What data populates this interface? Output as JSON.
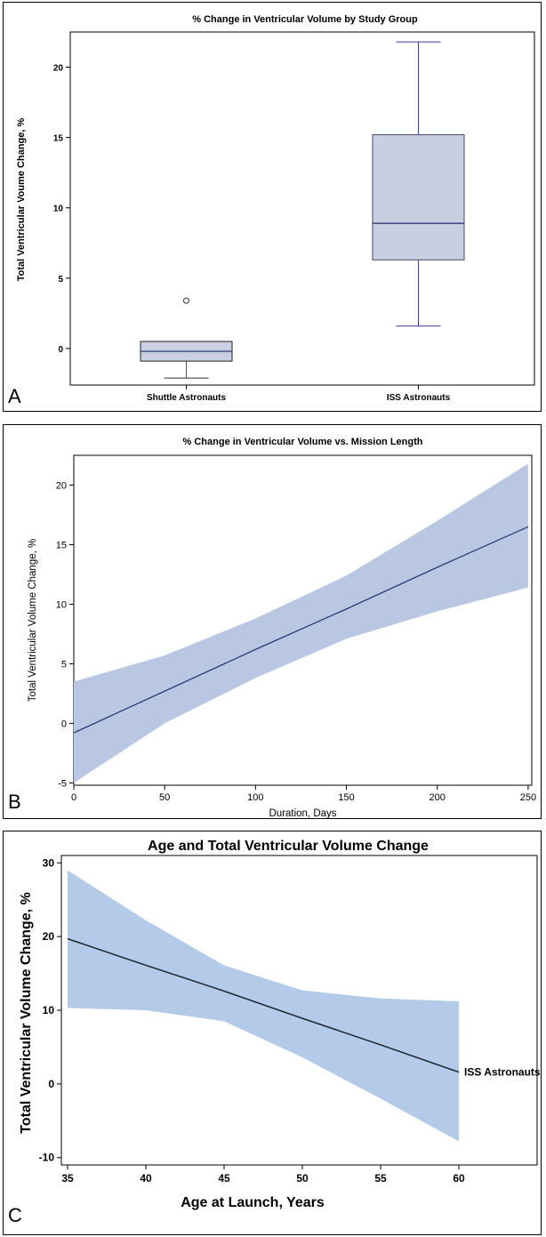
{
  "chart_data": [
    {
      "type": "box",
      "panel_label": "A",
      "title": "% Change in Ventricular Volume by Study Group",
      "xlabel": "",
      "ylabel": "Total Ventricular Voume Change, %",
      "ylim": [
        -2.6,
        22.5
      ],
      "yticks": [
        0,
        5,
        10,
        15,
        20
      ],
      "categories": [
        "Shuttle Astronauts",
        "ISS Astronauts"
      ],
      "boxes": [
        {
          "min": -2.1,
          "q1": -0.9,
          "median": -0.2,
          "q3": 0.5,
          "max": 0.5,
          "outliers": [
            3.4
          ]
        },
        {
          "min": 1.6,
          "q1": 6.3,
          "median": 8.9,
          "q3": 15.2,
          "max": 21.8,
          "outliers": []
        }
      ],
      "colors": {
        "fill": "#c9cfe0",
        "edge": "#1a2a6c",
        "whisker": "#3b3f99"
      }
    },
    {
      "type": "line",
      "panel_label": "B",
      "title": "% Change in Ventricular Volume vs. Mission Length",
      "xlabel": "Duration, Days",
      "ylabel": "Total Ventricular Volume Change, %",
      "xlim": [
        0,
        252
      ],
      "ylim": [
        -5.2,
        22.5
      ],
      "xticks": [
        0,
        50,
        100,
        150,
        200,
        250
      ],
      "yticks": [
        -5,
        0,
        5,
        10,
        15,
        20
      ],
      "x": [
        0,
        50,
        100,
        150,
        200,
        250
      ],
      "y": [
        -0.8,
        2.7,
        6.2,
        9.6,
        13.1,
        16.5
      ],
      "ci_lower": [
        -5.0,
        0.0,
        3.8,
        7.1,
        9.4,
        11.4
      ],
      "ci_upper": [
        3.5,
        5.7,
        8.8,
        12.4,
        17.0,
        21.8
      ],
      "colors": {
        "band": "#b9c7e2",
        "line": "#1f2f6e"
      }
    },
    {
      "type": "line",
      "panel_label": "C",
      "title": "Age and Total Ventricular Volume Change",
      "xlabel": "Age at Launch, Years",
      "ylabel": "Total Ventricular Volume Change, %",
      "xlim": [
        34.6,
        65
      ],
      "ylim": [
        -11,
        31
      ],
      "xticks": [
        35,
        40,
        45,
        50,
        55,
        60
      ],
      "yticks": [
        -10,
        0,
        10,
        20,
        30
      ],
      "x": [
        35,
        40,
        45,
        50,
        55,
        60
      ],
      "y": [
        19.7,
        16.1,
        12.6,
        8.9,
        5.3,
        1.6
      ],
      "ci_lower": [
        10.3,
        10.0,
        8.5,
        3.6,
        -2.0,
        -7.8
      ],
      "ci_upper": [
        29.0,
        22.2,
        16.1,
        12.7,
        11.6,
        11.2
      ],
      "series_label": "ISS Astronauts",
      "colors": {
        "band": "#b3cbe8",
        "line": "#1c2330"
      }
    }
  ]
}
